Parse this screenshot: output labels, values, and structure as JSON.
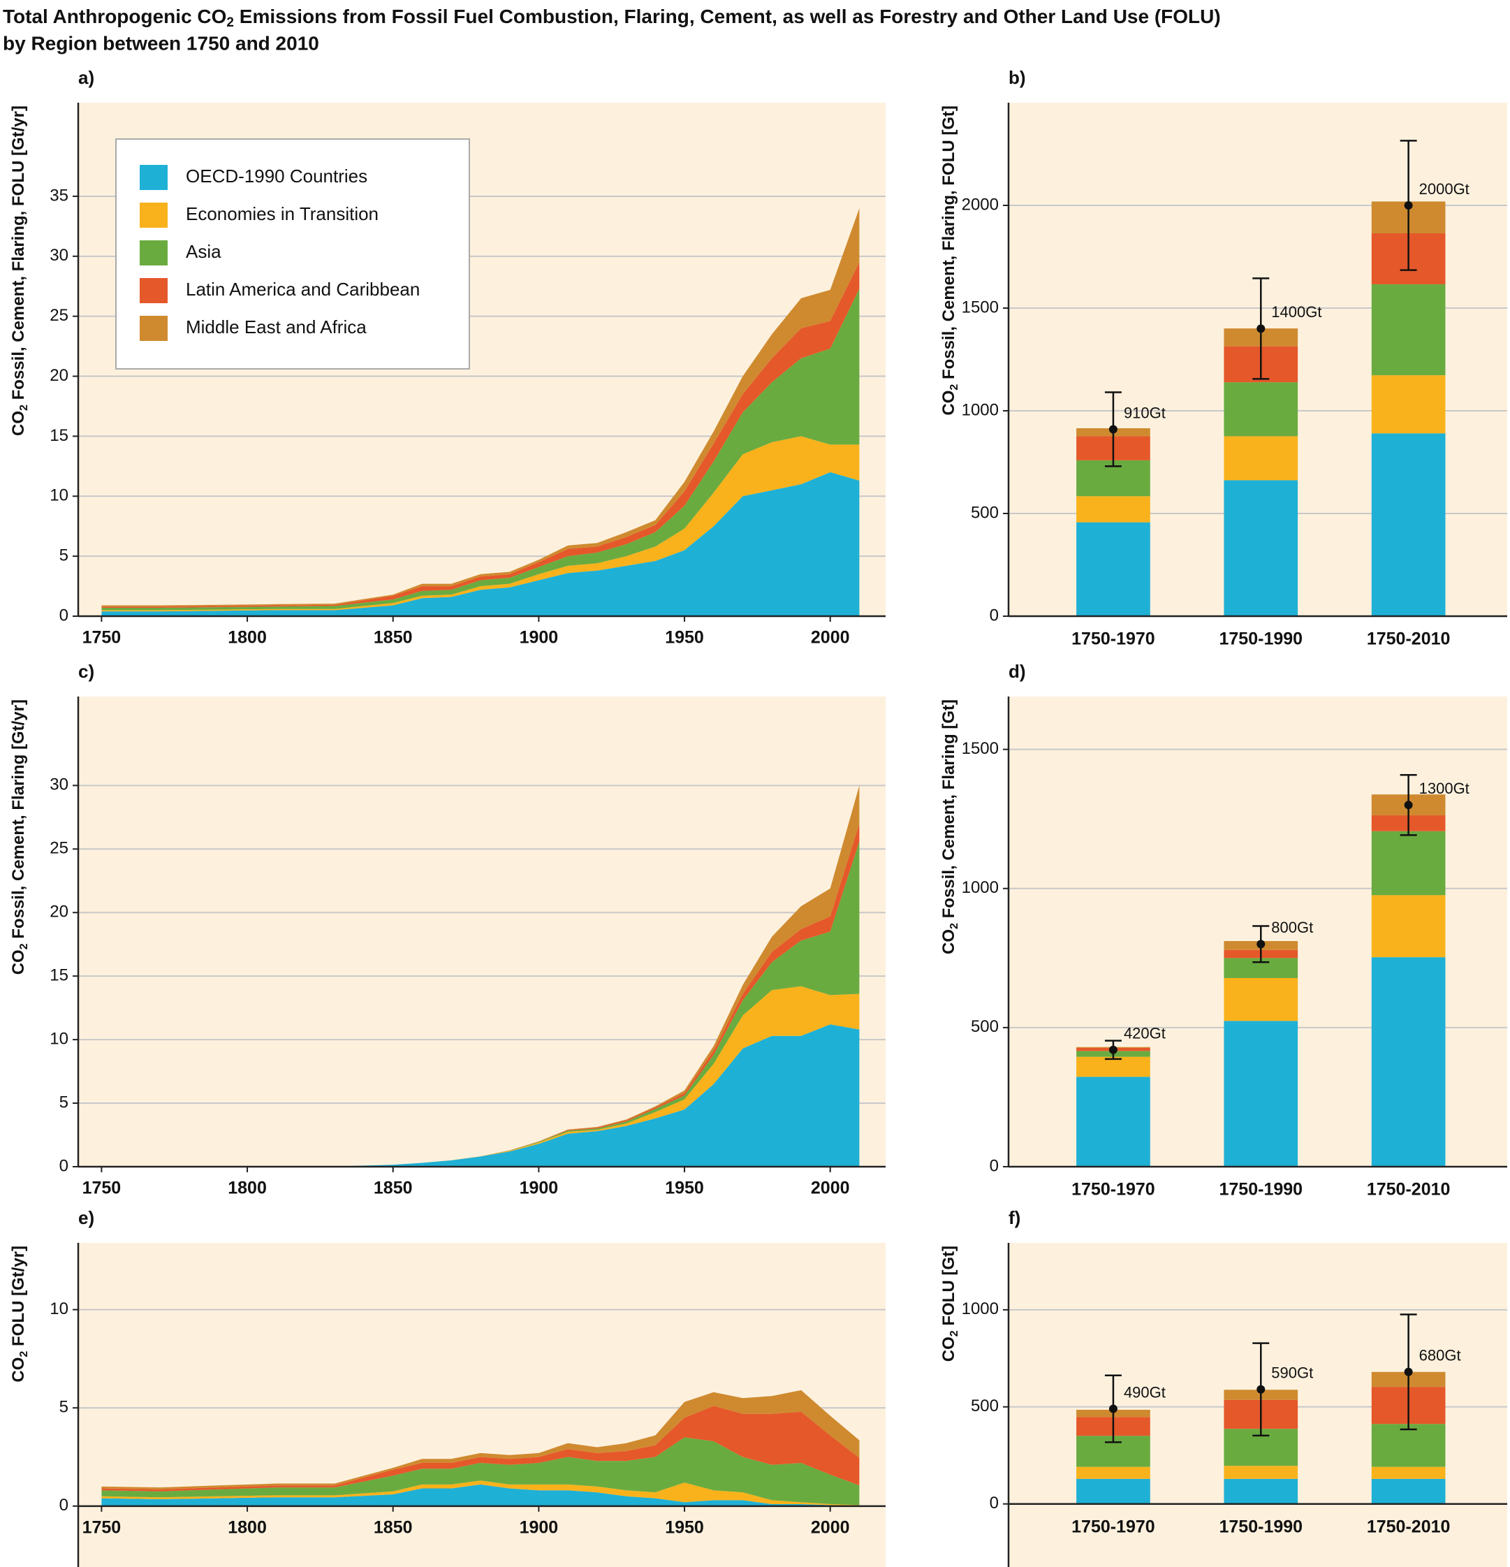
{
  "title": [
    "Total Anthropogenic CO",
    "2",
    " Emissions from Fossil Fuel Combustion, Flaring, Cement, as well as Forestry and Other Land Use (FOLU)",
    "by Region between 1750 and 2010"
  ],
  "chart_data": [
    {
      "type": "area",
      "label": "a)",
      "ylabel": [
        "CO",
        "2",
        " Fossil, Cement, Flaring, FOLU [Gt/yr]"
      ],
      "x": [
        1750,
        1770,
        1790,
        1810,
        1830,
        1850,
        1860,
        1870,
        1880,
        1890,
        1900,
        1910,
        1920,
        1930,
        1940,
        1950,
        1960,
        1970,
        1980,
        1990,
        2000,
        2010
      ],
      "xlim": [
        1742,
        2019
      ],
      "xticks": [
        1750,
        1800,
        1850,
        1900,
        1950,
        2000
      ],
      "ylim": [
        0,
        42.8
      ],
      "yticks": [
        0,
        5,
        10,
        15,
        20,
        25,
        30,
        35
      ],
      "grid": true,
      "legend": "upper left",
      "series": [
        {
          "name": "OECD-1990 Countries",
          "color": "#1fb0d6",
          "values": [
            0.4,
            0.4,
            0.45,
            0.5,
            0.5,
            0.9,
            1.5,
            1.6,
            2.2,
            2.4,
            3.0,
            3.6,
            3.8,
            4.2,
            4.6,
            5.5,
            7.5,
            10,
            10.5,
            11,
            12,
            11.3
          ]
        },
        {
          "name": "Economies in Transition",
          "color": "#f9b21b",
          "values": [
            0.1,
            0.1,
            0.1,
            0.1,
            0.1,
            0.2,
            0.2,
            0.2,
            0.3,
            0.3,
            0.5,
            0.6,
            0.6,
            0.8,
            1.2,
            1.8,
            2.8,
            3.5,
            4,
            4,
            2.3,
            3
          ]
        },
        {
          "name": "Asia",
          "color": "#6aab40",
          "values": [
            0.2,
            0.2,
            0.2,
            0.2,
            0.25,
            0.3,
            0.4,
            0.4,
            0.5,
            0.5,
            0.6,
            0.8,
            0.9,
            1.0,
            1.2,
            1.9,
            2.6,
            3.5,
            5,
            6.5,
            8,
            13
          ]
        },
        {
          "name": "Latin America and Caribbean",
          "color": "#e5582a",
          "values": [
            0.1,
            0.1,
            0.1,
            0.1,
            0.1,
            0.3,
            0.4,
            0.3,
            0.3,
            0.3,
            0.4,
            0.6,
            0.5,
            0.6,
            0.6,
            1.2,
            1.5,
            1.5,
            2,
            2.5,
            2.3,
            2.2
          ]
        },
        {
          "name": "Middle East and Africa",
          "color": "#cf8a2f",
          "values": [
            0.1,
            0.1,
            0.1,
            0.1,
            0.1,
            0.1,
            0.2,
            0.2,
            0.2,
            0.2,
            0.2,
            0.3,
            0.3,
            0.4,
            0.4,
            0.8,
            1,
            1.5,
            2,
            2.5,
            2.6,
            4.5
          ]
        }
      ]
    },
    {
      "type": "bar",
      "label": "b)",
      "ylabel": [
        "CO",
        "2",
        " Fossil, Cement, Flaring, FOLU [Gt]"
      ],
      "categories": [
        "1750-1970",
        "1750-1990",
        "1750-2010"
      ],
      "ylim": [
        0,
        2500
      ],
      "yticks": [
        0,
        500,
        1000,
        1500,
        2000
      ],
      "grid": true,
      "series": [
        {
          "color": "#1fb0d6",
          "values": [
            457,
            662,
            890
          ]
        },
        {
          "color": "#f9b21b",
          "values": [
            127,
            214,
            283
          ]
        },
        {
          "color": "#6aab40",
          "values": [
            175,
            263,
            443
          ]
        },
        {
          "color": "#e5582a",
          "values": [
            117,
            175,
            248
          ]
        },
        {
          "color": "#cf8a2f",
          "values": [
            39,
            87,
            155
          ]
        }
      ],
      "totals": {
        "values": [
          910,
          1400,
          2000
        ],
        "value_labels": [
          "910Gt",
          "1400Gt",
          "2000Gt"
        ],
        "errors": [
          180,
          245,
          315
        ]
      }
    },
    {
      "type": "area",
      "label": "c)",
      "ylabel": [
        "CO",
        "2",
        " Fossil, Cement, Flaring [Gt/yr]"
      ],
      "x": [
        1750,
        1770,
        1790,
        1810,
        1830,
        1850,
        1860,
        1870,
        1880,
        1890,
        1900,
        1910,
        1920,
        1930,
        1940,
        1950,
        1960,
        1970,
        1980,
        1990,
        2000,
        2010
      ],
      "xlim": [
        1742,
        2019
      ],
      "xticks": [
        1750,
        1800,
        1850,
        1900,
        1950,
        2000
      ],
      "ylim": [
        0,
        37
      ],
      "yticks": [
        0,
        5,
        10,
        15,
        20,
        25,
        30
      ],
      "grid": true,
      "series": [
        {
          "color": "#1fb0d6",
          "values": [
            0,
            0,
            0,
            0,
            0.02,
            0.15,
            0.3,
            0.5,
            0.8,
            1.2,
            1.8,
            2.6,
            2.8,
            3.2,
            3.8,
            4.5,
            6.5,
            9.3,
            10.3,
            10.3,
            11.2,
            10.8
          ]
        },
        {
          "color": "#f9b21b",
          "values": [
            0,
            0,
            0,
            0,
            0,
            0,
            0,
            0.01,
            0.02,
            0.05,
            0.1,
            0.15,
            0.1,
            0.2,
            0.5,
            0.8,
            1.6,
            2.6,
            3.6,
            3.9,
            2.3,
            2.8
          ]
        },
        {
          "color": "#6aab40",
          "values": [
            0,
            0,
            0,
            0,
            0,
            0,
            0,
            0,
            0,
            0.02,
            0.05,
            0.1,
            0.1,
            0.15,
            0.25,
            0.3,
            0.7,
            1.2,
            2.2,
            3.6,
            5,
            12
          ]
        },
        {
          "color": "#e5582a",
          "values": [
            0,
            0,
            0,
            0,
            0,
            0,
            0,
            0,
            0,
            0.01,
            0.02,
            0.05,
            0.08,
            0.1,
            0.12,
            0.2,
            0.35,
            0.5,
            0.8,
            0.9,
            1.2,
            1.4
          ]
        },
        {
          "color": "#cf8a2f",
          "values": [
            0,
            0,
            0,
            0,
            0,
            0,
            0,
            0,
            0,
            0.01,
            0.02,
            0.03,
            0.05,
            0.06,
            0.08,
            0.2,
            0.35,
            0.7,
            1.2,
            1.8,
            2.2,
            3
          ]
        }
      ]
    },
    {
      "type": "bar",
      "label": "d)",
      "ylabel": [
        "CO",
        "2",
        " Fossil, Cement, Flaring [Gt]"
      ],
      "categories": [
        "1750-1970",
        "1750-1990",
        "1750-2010"
      ],
      "ylim": [
        0,
        1690
      ],
      "yticks": [
        0,
        500,
        1000,
        1500
      ],
      "grid": true,
      "series": [
        {
          "color": "#1fb0d6",
          "values": [
            323,
            524,
            753
          ]
        },
        {
          "color": "#f9b21b",
          "values": [
            72,
            154,
            223
          ]
        },
        {
          "color": "#6aab40",
          "values": [
            21,
            72,
            230
          ]
        },
        {
          "color": "#e5582a",
          "values": [
            11,
            29,
            57
          ]
        },
        {
          "color": "#cf8a2f",
          "values": [
            3,
            32,
            75
          ]
        }
      ],
      "totals": {
        "values": [
          420,
          800,
          1300
        ],
        "value_labels": [
          "420Gt",
          "800Gt",
          "1300Gt"
        ],
        "errors": [
          33,
          65,
          108
        ]
      }
    },
    {
      "type": "area",
      "label": "e)",
      "ylabel": [
        "CO",
        "2",
        " FOLU [Gt/yr]"
      ],
      "x": [
        1750,
        1770,
        1790,
        1810,
        1830,
        1850,
        1860,
        1870,
        1880,
        1890,
        1900,
        1910,
        1920,
        1930,
        1940,
        1950,
        1960,
        1970,
        1980,
        1990,
        2000,
        2010
      ],
      "xlim": [
        1742,
        2019
      ],
      "xticks": [
        1750,
        1800,
        1850,
        1900,
        1950,
        2000
      ],
      "ylim": [
        -3.1,
        13.4
      ],
      "yticks": [
        0,
        5,
        10
      ],
      "grid": true,
      "series": [
        {
          "color": "#1fb0d6",
          "values": [
            0.4,
            0.35,
            0.4,
            0.45,
            0.45,
            0.6,
            0.9,
            0.9,
            1.1,
            0.9,
            0.8,
            0.8,
            0.7,
            0.5,
            0.4,
            0.2,
            0.3,
            0.3,
            0.1,
            0.1,
            0.05,
            0
          ]
        },
        {
          "color": "#f9b21b",
          "values": [
            0.1,
            0.1,
            0.1,
            0.1,
            0.1,
            0.15,
            0.2,
            0.2,
            0.2,
            0.2,
            0.3,
            0.3,
            0.3,
            0.3,
            0.3,
            1.0,
            0.5,
            0.4,
            0.2,
            0.1,
            0.05,
            0.05
          ]
        },
        {
          "color": "#6aab40",
          "values": [
            0.3,
            0.3,
            0.35,
            0.4,
            0.4,
            0.8,
            0.8,
            0.8,
            0.9,
            1.0,
            1.1,
            1.4,
            1.3,
            1.5,
            1.8,
            2.3,
            2.5,
            1.8,
            1.8,
            2.0,
            1.5,
            1.0
          ]
        },
        {
          "color": "#e5582a",
          "values": [
            0.1,
            0.1,
            0.1,
            0.1,
            0.1,
            0.3,
            0.3,
            0.3,
            0.3,
            0.3,
            0.3,
            0.4,
            0.4,
            0.5,
            0.6,
            1.0,
            1.8,
            2.2,
            2.6,
            2.6,
            2.0,
            1.4
          ]
        },
        {
          "color": "#cf8a2f",
          "values": [
            0.1,
            0.1,
            0.1,
            0.1,
            0.1,
            0.1,
            0.2,
            0.2,
            0.2,
            0.2,
            0.2,
            0.3,
            0.3,
            0.4,
            0.5,
            0.8,
            0.7,
            0.8,
            0.9,
            1.1,
            1.0,
            0.9
          ]
        }
      ]
    },
    {
      "type": "bar",
      "label": "f)",
      "ylabel": [
        "CO",
        "2",
        " FOLU [Gt]"
      ],
      "categories": [
        "1750-1970",
        "1750-1990",
        "1750-2010"
      ],
      "ylim": [
        -325,
        1345
      ],
      "yticks": [
        0,
        500,
        1000
      ],
      "grid": true,
      "series": [
        {
          "color": "#1fb0d6",
          "values": [
            129,
            129,
            129
          ]
        },
        {
          "color": "#f9b21b",
          "values": [
            62,
            67,
            62
          ]
        },
        {
          "color": "#6aab40",
          "values": [
            160,
            191,
            221
          ]
        },
        {
          "color": "#e5582a",
          "values": [
            97,
            149,
            191
          ]
        },
        {
          "color": "#cf8a2f",
          "values": [
            37,
            52,
            77
          ]
        }
      ],
      "totals": {
        "values": [
          490,
          590,
          680
        ],
        "value_labels": [
          "490Gt",
          "590Gt",
          "680Gt"
        ],
        "errors": [
          172,
          238,
          296
        ]
      }
    }
  ]
}
